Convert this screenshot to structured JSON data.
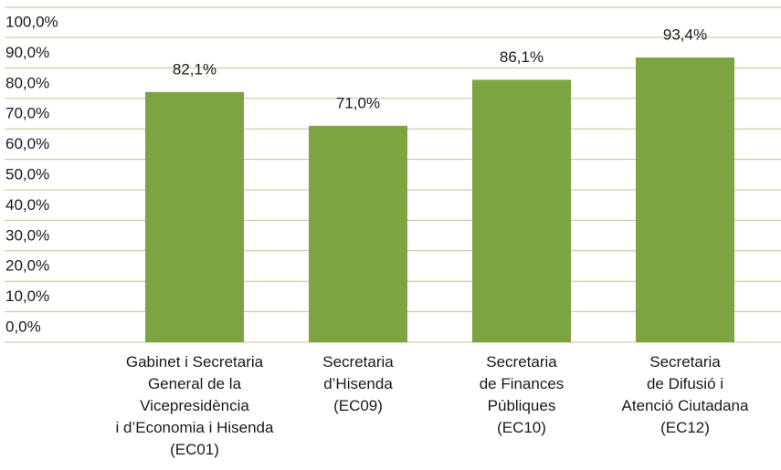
{
  "chart_data": {
    "type": "bar",
    "categories": [
      "Gabinet i Secretaria\nGeneral de la\nVicepresidència\ni d’Economia i Hisenda\n(EC01)",
      "Secretaria\nd’Hisenda\n(EC09)",
      "Secretaria\nde Finances\nPúbliques\n(EC10)",
      "Secretaria\nde Difusió i\nAtenció Ciutadana\n(EC12)"
    ],
    "values": [
      82.1,
      71.0,
      86.1,
      93.4
    ],
    "value_labels": [
      "82,1%",
      "71,0%",
      "86,1%",
      "93,4%"
    ],
    "color": "#7da441",
    "ylim": [
      0,
      100
    ],
    "yticks": [
      {
        "value": 0,
        "label": "0,0%"
      },
      {
        "value": 10,
        "label": "10,0%"
      },
      {
        "value": 20,
        "label": "20,0%"
      },
      {
        "value": 30,
        "label": "30,0%"
      },
      {
        "value": 40,
        "label": "40,0%"
      },
      {
        "value": 50,
        "label": "50,0%"
      },
      {
        "value": 60,
        "label": "60,0%"
      },
      {
        "value": 70,
        "label": "70,0%"
      },
      {
        "value": 80,
        "label": "80,0%"
      },
      {
        "value": 90,
        "label": "90,0%"
      },
      {
        "value": 100,
        "label": "100,0%"
      }
    ],
    "grid": true
  }
}
